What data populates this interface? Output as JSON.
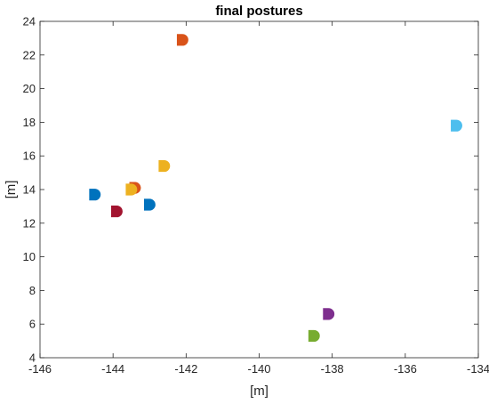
{
  "chart_data": {
    "type": "scatter",
    "title": "final postures",
    "xlabel": "[m]",
    "ylabel": "[m]",
    "xlim": [
      -146,
      -134
    ],
    "ylim": [
      4,
      24
    ],
    "xticks": [
      -146,
      -144,
      -142,
      -140,
      -138,
      -136,
      -134
    ],
    "yticks": [
      4,
      6,
      8,
      10,
      12,
      14,
      16,
      18,
      20,
      22,
      24
    ],
    "grid": false,
    "box": true,
    "points": [
      {
        "x": -142.1,
        "y": 22.9,
        "color": "#D95319",
        "heading": "right"
      },
      {
        "x": -134.6,
        "y": 17.8,
        "color": "#4DBEEE",
        "heading": "right"
      },
      {
        "x": -142.6,
        "y": 15.4,
        "color": "#EDB120",
        "heading": "right"
      },
      {
        "x": -144.5,
        "y": 13.7,
        "color": "#0072BD",
        "heading": "right"
      },
      {
        "x": -143.4,
        "y": 14.1,
        "color": "#D95319",
        "heading": "right"
      },
      {
        "x": -143.5,
        "y": 14.0,
        "color": "#EDB120",
        "heading": "right"
      },
      {
        "x": -143.0,
        "y": 13.1,
        "color": "#0072BD",
        "heading": "right"
      },
      {
        "x": -143.9,
        "y": 12.7,
        "color": "#A2142F",
        "heading": "right"
      },
      {
        "x": -138.1,
        "y": 6.6,
        "color": "#7E2F8E",
        "heading": "right"
      },
      {
        "x": -138.5,
        "y": 5.3,
        "color": "#77AC30",
        "heading": "right"
      }
    ]
  }
}
